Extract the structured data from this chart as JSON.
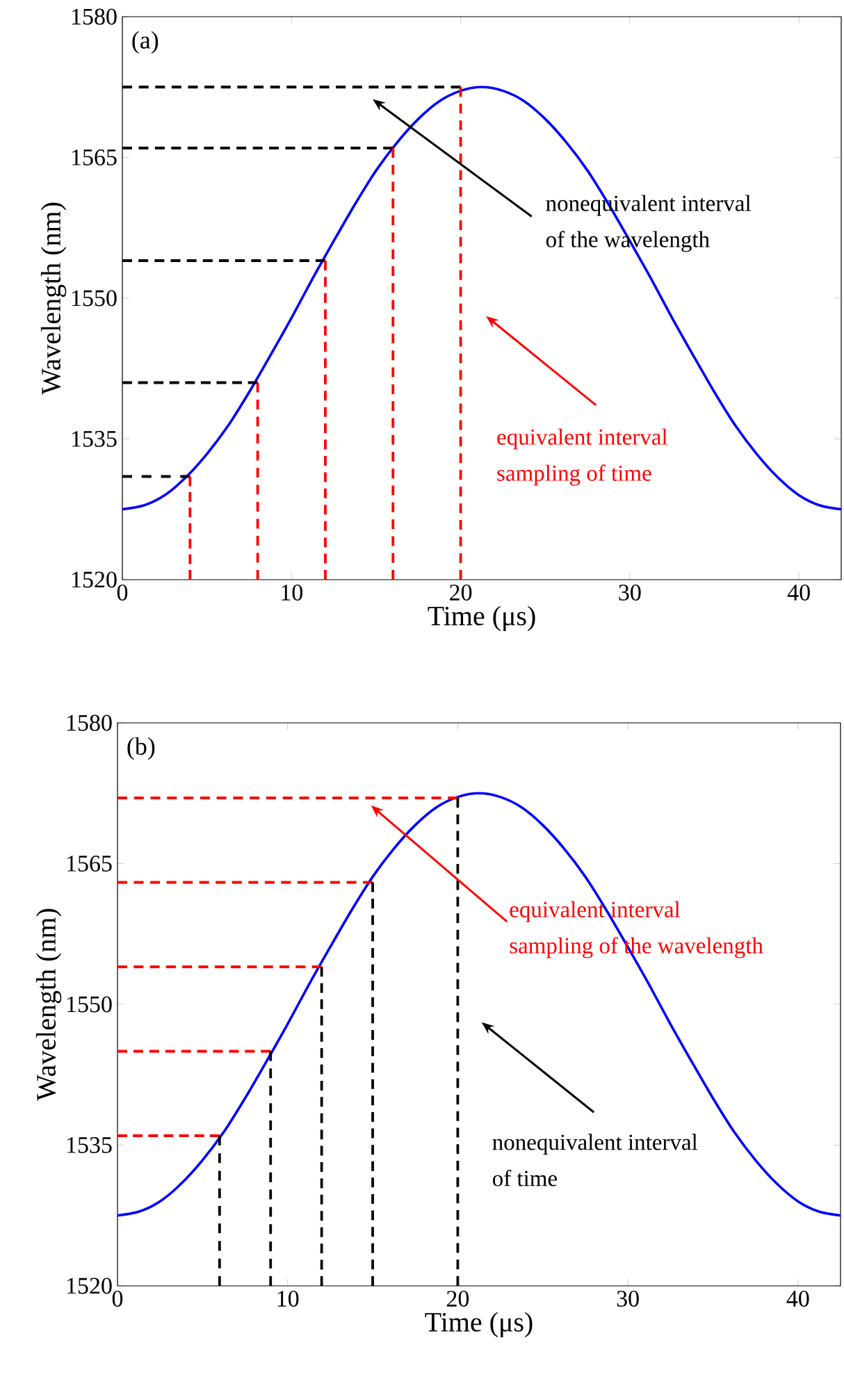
{
  "chart_data": [
    {
      "type": "line",
      "title": "(a)",
      "xlabel": "Time (μs)",
      "ylabel": "Wavelength (nm)",
      "xlim": [
        0,
        42.5
      ],
      "ylim": [
        1520,
        1580
      ],
      "xticks": [
        0,
        10,
        20,
        30,
        40
      ],
      "yticks": [
        1520,
        1535,
        1550,
        1565,
        1580
      ],
      "series": [
        {
          "color": "#0000ff",
          "line_style": "solid",
          "x": [
            0,
            1.25,
            2.5,
            3.75,
            5,
            6.25,
            7.5,
            8.75,
            10,
            11.25,
            12.5,
            13.75,
            15,
            16.25,
            17.5,
            18.75,
            20,
            21.25,
            22.5,
            23.75,
            25,
            26.25,
            27.5,
            28.75,
            30,
            31.25,
            32.5,
            33.75,
            35,
            36.25,
            37.5,
            38.75,
            40,
            41.25,
            42.5
          ],
          "values": [
            1527.5,
            1527.9,
            1529,
            1530.9,
            1533.4,
            1536.4,
            1540,
            1543.9,
            1547.9,
            1552.1,
            1556.1,
            1560,
            1563.6,
            1566.6,
            1569.1,
            1571,
            1572.1,
            1572.5,
            1572.1,
            1571,
            1569.1,
            1566.6,
            1563.6,
            1560,
            1556.1,
            1552.1,
            1547.9,
            1543.9,
            1540,
            1536.4,
            1533.4,
            1530.9,
            1529,
            1527.9,
            1527.5
          ]
        },
        {
          "color": "#000000",
          "line_style": "dashed",
          "x": [
            0,
            4
          ],
          "values": [
            1531,
            1531
          ]
        },
        {
          "color": "#000000",
          "line_style": "dashed",
          "x": [
            0,
            8
          ],
          "values": [
            1541,
            1541
          ]
        },
        {
          "color": "#000000",
          "line_style": "dashed",
          "x": [
            0,
            12
          ],
          "values": [
            1554,
            1554
          ]
        },
        {
          "color": "#000000",
          "line_style": "dashed",
          "x": [
            0,
            16
          ],
          "values": [
            1566,
            1566
          ]
        },
        {
          "color": "#000000",
          "line_style": "dashed",
          "x": [
            0,
            20
          ],
          "values": [
            1572.5,
            1572.5
          ]
        },
        {
          "color": "#ff0000",
          "line_style": "dashed",
          "x": [
            4,
            4
          ],
          "values": [
            1520,
            1531
          ]
        },
        {
          "color": "#ff0000",
          "line_style": "dashed",
          "x": [
            8,
            8
          ],
          "values": [
            1520,
            1541
          ]
        },
        {
          "color": "#ff0000",
          "line_style": "dashed",
          "x": [
            12,
            12
          ],
          "values": [
            1520,
            1554
          ]
        },
        {
          "color": "#ff0000",
          "line_style": "dashed",
          "x": [
            16,
            16
          ],
          "values": [
            1520,
            1566
          ]
        },
        {
          "color": "#ff0000",
          "line_style": "dashed",
          "x": [
            20,
            20
          ],
          "values": [
            1520,
            1572.5
          ]
        }
      ],
      "annotations": [
        "nonequivalent interval",
        "of the wavelength",
        "equivalent interval",
        "sampling of time"
      ]
    },
    {
      "type": "line",
      "title": "(b)",
      "xlabel": "Time (μs)",
      "ylabel": "Wavelength (nm)",
      "xlim": [
        0,
        42.5
      ],
      "ylim": [
        1520,
        1580
      ],
      "xticks": [
        0,
        10,
        20,
        30,
        40
      ],
      "yticks": [
        1520,
        1535,
        1550,
        1565,
        1580
      ],
      "series": [
        {
          "color": "#0000ff",
          "line_style": "solid",
          "x": [
            0,
            1.25,
            2.5,
            3.75,
            5,
            6.25,
            7.5,
            8.75,
            10,
            11.25,
            12.5,
            13.75,
            15,
            16.25,
            17.5,
            18.75,
            20,
            21.25,
            22.5,
            23.75,
            25,
            26.25,
            27.5,
            28.75,
            30,
            31.25,
            32.5,
            33.75,
            35,
            36.25,
            37.5,
            38.75,
            40,
            41.25,
            42.5
          ],
          "values": [
            1527.5,
            1527.9,
            1529,
            1530.9,
            1533.4,
            1536.4,
            1540,
            1543.9,
            1547.9,
            1552.1,
            1556.1,
            1560,
            1563.6,
            1566.6,
            1569.1,
            1571,
            1572.1,
            1572.5,
            1572.1,
            1571,
            1569.1,
            1566.6,
            1563.6,
            1560,
            1556.1,
            1552.1,
            1547.9,
            1543.9,
            1540,
            1536.4,
            1533.4,
            1530.9,
            1529,
            1527.9,
            1527.5
          ]
        },
        {
          "color": "#ff0000",
          "line_style": "dashed",
          "x": [
            0,
            6
          ],
          "values": [
            1536,
            1536
          ]
        },
        {
          "color": "#ff0000",
          "line_style": "dashed",
          "x": [
            0,
            9
          ],
          "values": [
            1545,
            1545
          ]
        },
        {
          "color": "#ff0000",
          "line_style": "dashed",
          "x": [
            0,
            12
          ],
          "values": [
            1554,
            1554
          ]
        },
        {
          "color": "#ff0000",
          "line_style": "dashed",
          "x": [
            0,
            15
          ],
          "values": [
            1563,
            1563
          ]
        },
        {
          "color": "#ff0000",
          "line_style": "dashed",
          "x": [
            0,
            20
          ],
          "values": [
            1572,
            1572
          ]
        },
        {
          "color": "#000000",
          "line_style": "dashed",
          "x": [
            6,
            6
          ],
          "values": [
            1520,
            1536
          ]
        },
        {
          "color": "#000000",
          "line_style": "dashed",
          "x": [
            9,
            9
          ],
          "values": [
            1520,
            1545
          ]
        },
        {
          "color": "#000000",
          "line_style": "dashed",
          "x": [
            12,
            12
          ],
          "values": [
            1520,
            1554
          ]
        },
        {
          "color": "#000000",
          "line_style": "dashed",
          "x": [
            15,
            15
          ],
          "values": [
            1520,
            1563
          ]
        },
        {
          "color": "#000000",
          "line_style": "dashed",
          "x": [
            20,
            20
          ],
          "values": [
            1520,
            1572
          ]
        }
      ],
      "annotations": [
        "equivalent interval",
        "sampling of the wavelength",
        "nonequivalent interval",
        "of time"
      ]
    }
  ]
}
